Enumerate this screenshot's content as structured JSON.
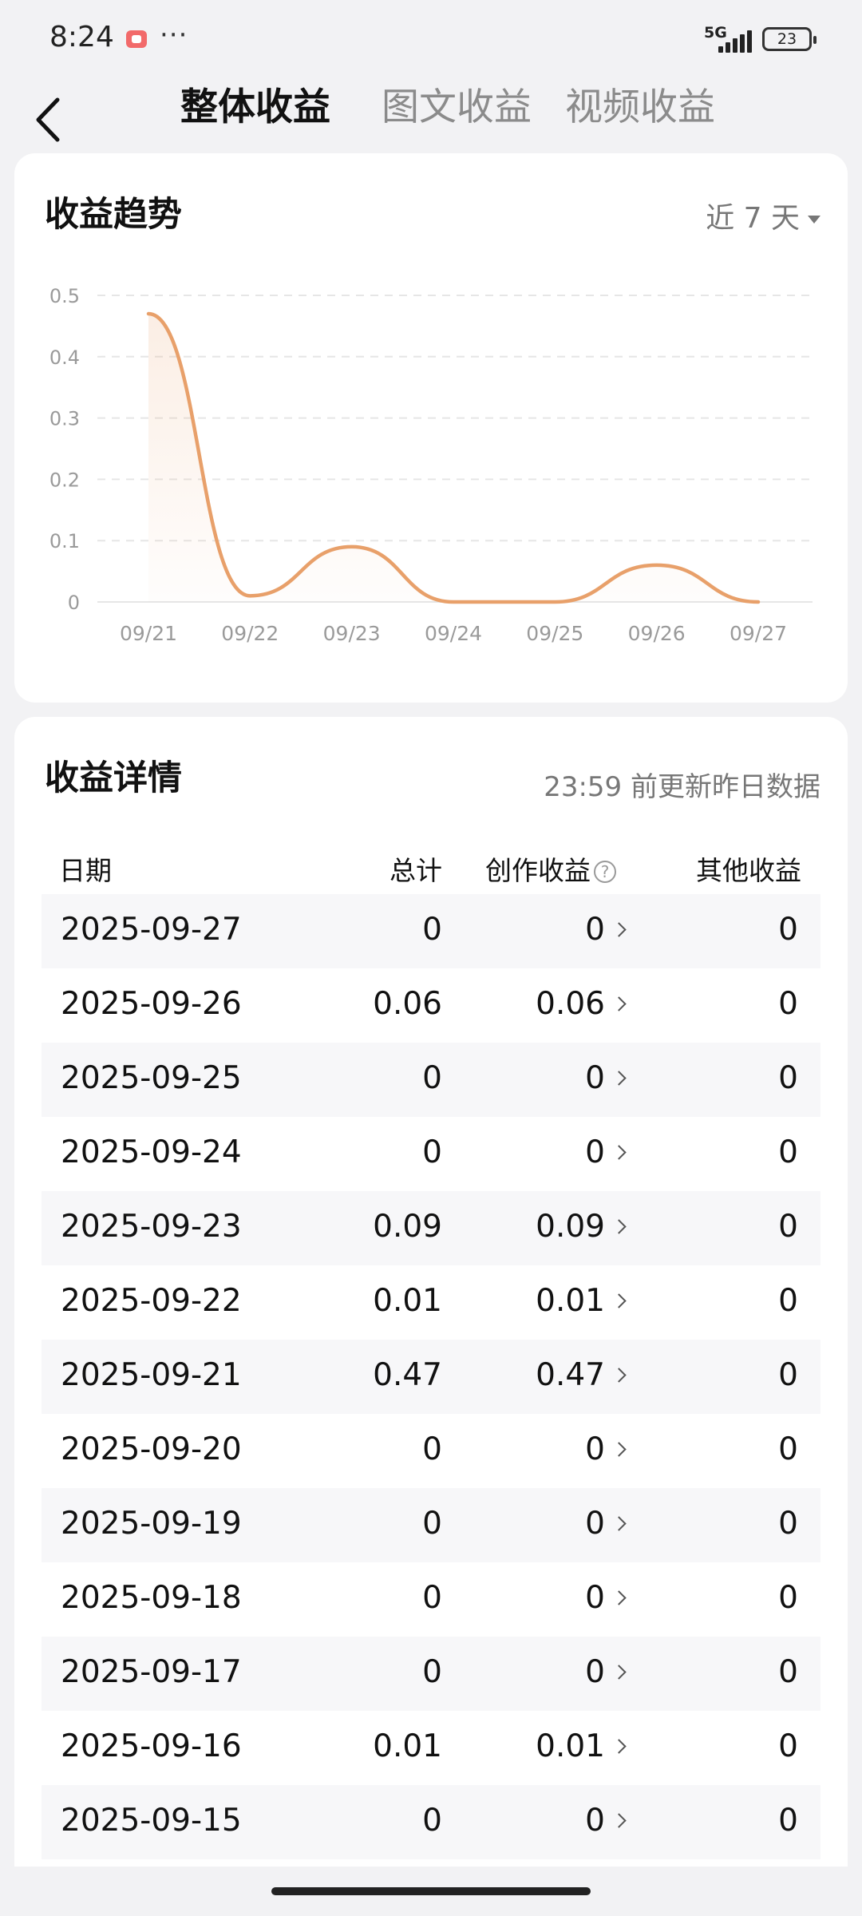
{
  "status_bar": {
    "time": "8:24",
    "more": "···",
    "network": "5G",
    "battery": "23"
  },
  "header": {
    "tabs": [
      {
        "label": "整体收益",
        "active": true
      },
      {
        "label": "图文收益",
        "active": false
      },
      {
        "label": "视频收益",
        "active": false
      }
    ]
  },
  "trend": {
    "title": "收益趋势",
    "period": "近 7 天"
  },
  "chart_data": {
    "type": "area",
    "x": [
      "09/21",
      "09/22",
      "09/23",
      "09/24",
      "09/25",
      "09/26",
      "09/27"
    ],
    "series": [
      {
        "values": [
          0.47,
          0.01,
          0.09,
          0,
          0,
          0.06,
          0
        ]
      }
    ],
    "yticks": [
      "0",
      "0.1",
      "0.2",
      "0.3",
      "0.4",
      "0.5"
    ],
    "ylim": [
      0,
      0.5
    ],
    "grid": true,
    "line_color": "#e8a06a"
  },
  "detail": {
    "title": "收益详情",
    "note": "23:59 前更新昨日数据",
    "columns": {
      "date": "日期",
      "total": "总计",
      "creation": "创作收益",
      "other": "其他收益"
    },
    "rows": [
      {
        "date": "2025-09-27",
        "total": "0",
        "creation": "0",
        "other": "0"
      },
      {
        "date": "2025-09-26",
        "total": "0.06",
        "creation": "0.06",
        "other": "0"
      },
      {
        "date": "2025-09-25",
        "total": "0",
        "creation": "0",
        "other": "0"
      },
      {
        "date": "2025-09-24",
        "total": "0",
        "creation": "0",
        "other": "0"
      },
      {
        "date": "2025-09-23",
        "total": "0.09",
        "creation": "0.09",
        "other": "0"
      },
      {
        "date": "2025-09-22",
        "total": "0.01",
        "creation": "0.01",
        "other": "0"
      },
      {
        "date": "2025-09-21",
        "total": "0.47",
        "creation": "0.47",
        "other": "0"
      },
      {
        "date": "2025-09-20",
        "total": "0",
        "creation": "0",
        "other": "0"
      },
      {
        "date": "2025-09-19",
        "total": "0",
        "creation": "0",
        "other": "0"
      },
      {
        "date": "2025-09-18",
        "total": "0",
        "creation": "0",
        "other": "0"
      },
      {
        "date": "2025-09-17",
        "total": "0",
        "creation": "0",
        "other": "0"
      },
      {
        "date": "2025-09-16",
        "total": "0.01",
        "creation": "0.01",
        "other": "0"
      },
      {
        "date": "2025-09-15",
        "total": "0",
        "creation": "0",
        "other": "0"
      }
    ]
  }
}
